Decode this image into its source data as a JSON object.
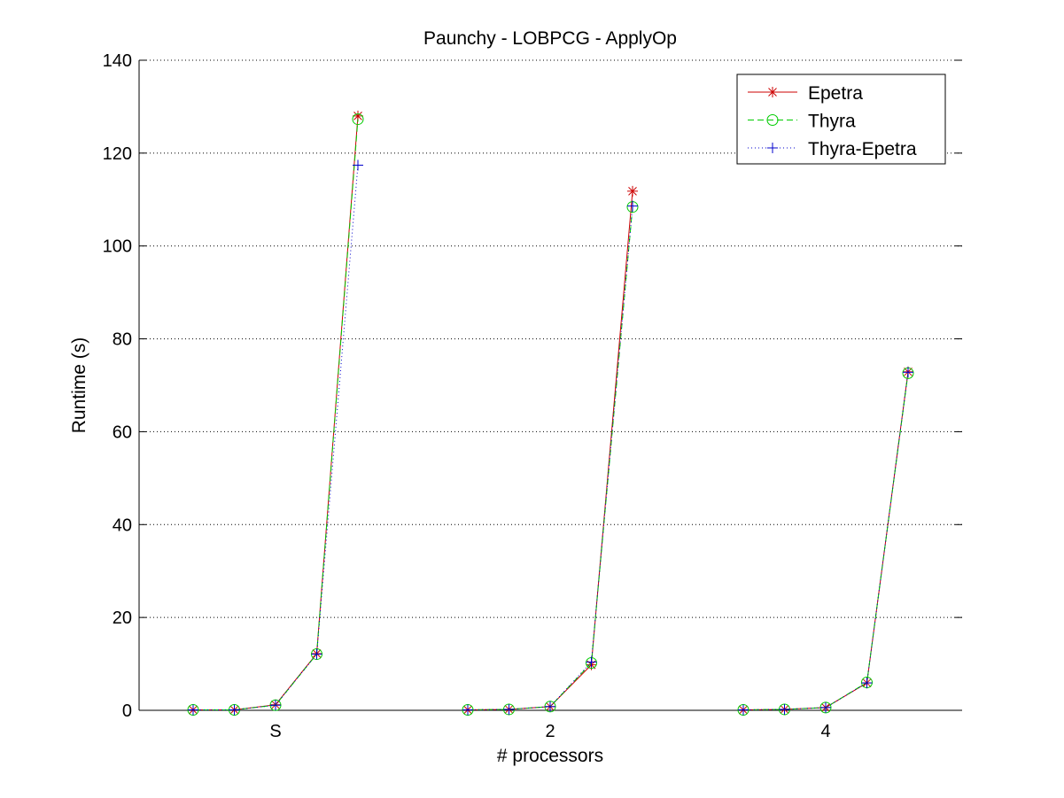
{
  "chart_data": {
    "type": "line",
    "title": "Paunchy - LOBPCG - ApplyOp",
    "xlabel": "# processors",
    "ylabel": "Runtime (s)",
    "x_tick_labels": [
      "S",
      "2",
      "4"
    ],
    "ylim": [
      0,
      140
    ],
    "yticks": [
      0,
      20,
      40,
      60,
      80,
      100,
      120,
      140
    ],
    "y_grid": true,
    "legend_position": "top-right",
    "groups": [
      {
        "label": "S",
        "points": 5
      },
      {
        "label": "2",
        "points": 5
      },
      {
        "label": "4",
        "points": 5
      }
    ],
    "series": [
      {
        "name": "Epetra",
        "color": "#cc0000",
        "line_style": "solid",
        "marker": "asterisk",
        "values": [
          [
            0.1,
            0.1,
            1.2,
            12.2,
            128.0
          ],
          [
            0.1,
            0.2,
            0.8,
            9.8,
            111.8
          ],
          [
            0.1,
            0.2,
            0.6,
            5.9,
            72.9
          ]
        ]
      },
      {
        "name": "Thyra",
        "color": "#00cc00",
        "line_style": "dashed",
        "marker": "circle",
        "values": [
          [
            0.1,
            0.1,
            1.1,
            12.1,
            127.3
          ],
          [
            0.1,
            0.2,
            0.8,
            10.2,
            108.4
          ],
          [
            0.1,
            0.2,
            0.6,
            6.0,
            72.6
          ]
        ]
      },
      {
        "name": "Thyra-Epetra",
        "color": "#0000cc",
        "line_style": "dotted",
        "marker": "plus",
        "values": [
          [
            0.1,
            0.1,
            1.1,
            12.1,
            117.4
          ],
          [
            0.1,
            0.2,
            0.8,
            10.4,
            108.6
          ],
          [
            0.1,
            0.2,
            0.6,
            5.9,
            72.8
          ]
        ]
      }
    ]
  }
}
